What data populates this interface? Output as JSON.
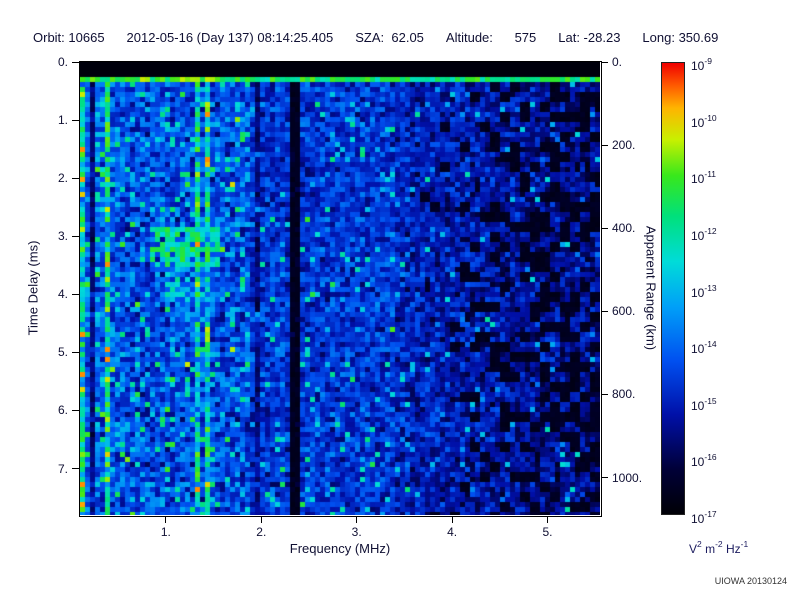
{
  "header": {
    "fields": [
      "Orbit: 10665",
      "2012-05-16 (Day 137) 08:14:25.405",
      "SZA:  62.05",
      "Altitude:      575",
      "Lat: -28.23",
      "Long: 350.69"
    ]
  },
  "footer": {
    "credit": "UIOWA 20130124"
  },
  "colors": {
    "background": "#ffffff",
    "plot_text": "#101033",
    "units_text": "#1b1b5e",
    "frame": "#000000"
  },
  "chart_data": {
    "type": "heatmap",
    "title": "",
    "xlabel": "Frequency (MHz)",
    "ylabel_left": "Time Delay (ms)",
    "ylabel_right": "Apparent Range (km)",
    "xlim": [
      0.1,
      5.55
    ],
    "ylim_left": [
      0,
      7.8
    ],
    "ylim_right": [
      0,
      1090
    ],
    "grid": false,
    "x_ticks": [
      {
        "value": 1,
        "label": "1."
      },
      {
        "value": 2,
        "label": "2."
      },
      {
        "value": 3,
        "label": "3."
      },
      {
        "value": 4,
        "label": "4."
      },
      {
        "value": 5,
        "label": "5."
      }
    ],
    "y_ticks_left": [
      {
        "value": 0,
        "label": "0."
      },
      {
        "value": 1,
        "label": "1."
      },
      {
        "value": 2,
        "label": "2."
      },
      {
        "value": 3,
        "label": "3."
      },
      {
        "value": 4,
        "label": "4."
      },
      {
        "value": 5,
        "label": "5."
      },
      {
        "value": 6,
        "label": "6."
      },
      {
        "value": 7,
        "label": "7."
      }
    ],
    "y_ticks_right": [
      {
        "value": 0,
        "label": "0."
      },
      {
        "value": 200,
        "label": "200."
      },
      {
        "value": 400,
        "label": "400."
      },
      {
        "value": 600,
        "label": "600."
      },
      {
        "value": 800,
        "label": "800."
      },
      {
        "value": 1000,
        "label": "1000."
      }
    ],
    "colorbar": {
      "exponents": [
        -9,
        -10,
        -11,
        -12,
        -13,
        -14,
        -15,
        -16,
        -17
      ],
      "unit_parts": [
        {
          "base": "V",
          "sup": "2"
        },
        {
          "base": "m",
          "sup": "-2"
        },
        {
          "base": "Hz",
          "sup": "-1"
        }
      ],
      "stops": [
        {
          "p": 0.0,
          "c": "#000006"
        },
        {
          "p": 0.1,
          "c": "#000038"
        },
        {
          "p": 0.22,
          "c": "#0010a8"
        },
        {
          "p": 0.34,
          "c": "#0050f0"
        },
        {
          "p": 0.46,
          "c": "#00a0f8"
        },
        {
          "p": 0.56,
          "c": "#00dcd8"
        },
        {
          "p": 0.66,
          "c": "#00e07c"
        },
        {
          "p": 0.75,
          "c": "#38e81c"
        },
        {
          "p": 0.83,
          "c": "#c8f000"
        },
        {
          "p": 0.9,
          "c": "#ffb400"
        },
        {
          "p": 0.95,
          "c": "#ff5a00"
        },
        {
          "p": 1.0,
          "c": "#f00000"
        }
      ]
    },
    "noise_profile": [
      {
        "f_max": 0.5,
        "base": 0.36,
        "amp": 0.2,
        "speckle_p": 0.1
      },
      {
        "f_max": 1.9,
        "base": 0.33,
        "amp": 0.2,
        "speckle_p": 0.1
      },
      {
        "f_max": 3.4,
        "base": 0.29,
        "amp": 0.16,
        "speckle_p": 0.06
      },
      {
        "f_max": 5.6,
        "base": 0.25,
        "amp": 0.15,
        "speckle_p": 0.04
      }
    ],
    "features": {
      "top_black_band_delay": 0.24,
      "calibration_line": {
        "delay": 0.3,
        "halfwidth": 0.05,
        "intensity": 0.56
      },
      "bright_vertical_lines": [
        {
          "f": 0.13,
          "halfwidth": 0.035,
          "boost": 0.22
        },
        {
          "f": 0.37,
          "halfwidth": 0.03,
          "boost": 0.24
        },
        {
          "f": 1.33,
          "halfwidth": 0.035,
          "boost": 0.26
        },
        {
          "f": 1.44,
          "halfwidth": 0.03,
          "boost": 0.22
        }
      ],
      "dark_vertical_bands": [
        {
          "f": 0.25,
          "halfwidth": 0.025,
          "factor": 0.45
        },
        {
          "f": 1.98,
          "halfwidth": 0.02,
          "factor": 0.6
        },
        {
          "f": 2.36,
          "halfwidth": 0.06,
          "factor": 0.18
        }
      ],
      "echo_blobs": [
        {
          "f_range": [
            0.85,
            1.55
          ],
          "delay_range": [
            2.85,
            3.5
          ],
          "intensity": 0.62,
          "density": 0.78
        },
        {
          "f_range": [
            0.9,
            1.45
          ],
          "delay_range": [
            3.5,
            4.15
          ],
          "intensity": 0.46,
          "density": 0.4
        }
      ],
      "right_darkening": {
        "f_start": 3.6,
        "max_black_probability": 0.42
      }
    }
  }
}
